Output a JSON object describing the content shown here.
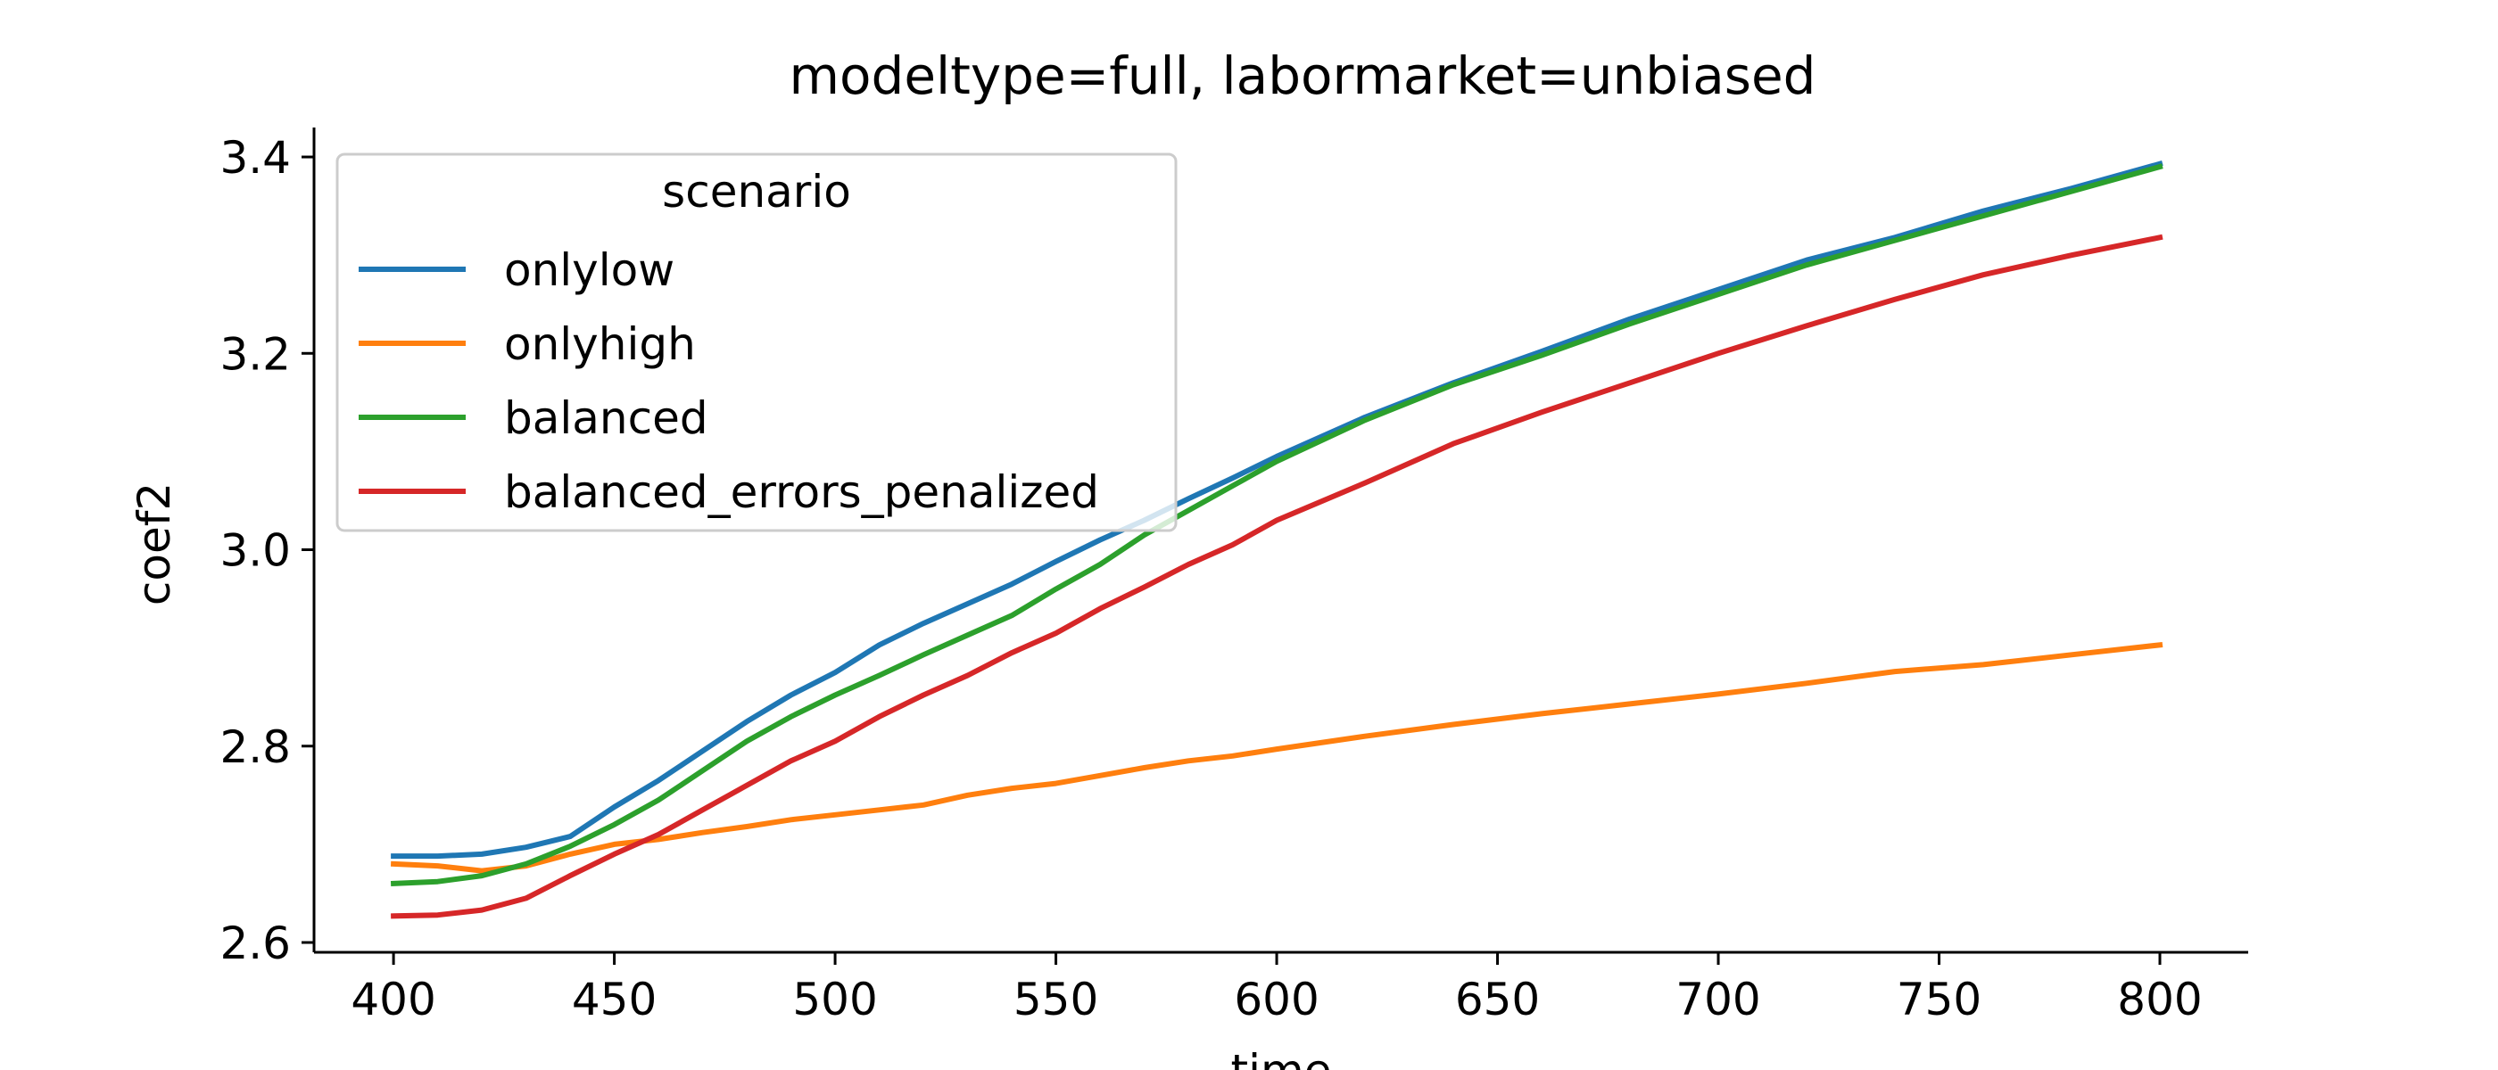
{
  "chart_data": {
    "type": "line",
    "title": "modeltype=full, labormarket=unbiased",
    "xlabel": "time",
    "ylabel": "coef2",
    "xlim": [
      382,
      820
    ],
    "ylim": [
      2.59,
      3.43
    ],
    "xticks": [
      400,
      450,
      500,
      550,
      600,
      650,
      700,
      750,
      800
    ],
    "yticks": [
      2.6,
      2.8,
      3.0,
      3.2,
      3.4
    ],
    "xtick_labels": [
      "400",
      "450",
      "500",
      "550",
      "600",
      "650",
      "700",
      "750",
      "800"
    ],
    "ytick_labels": [
      "2.6",
      "2.8",
      "3.0",
      "3.2",
      "3.4"
    ],
    "grid": false,
    "legend": {
      "title": "scenario",
      "placement": "upper-left"
    },
    "x": [
      400,
      410,
      420,
      430,
      440,
      450,
      460,
      470,
      480,
      490,
      500,
      510,
      520,
      530,
      540,
      550,
      560,
      570,
      580,
      590,
      600,
      620,
      640,
      660,
      680,
      700,
      720,
      740,
      760,
      780,
      800
    ],
    "series": [
      {
        "name": "onlylow",
        "color": "#1f77b4",
        "values": [
          2.688,
          2.688,
          2.69,
          2.697,
          2.708,
          2.738,
          2.765,
          2.795,
          2.825,
          2.852,
          2.875,
          2.903,
          2.925,
          2.945,
          2.965,
          2.988,
          3.01,
          3.03,
          3.052,
          3.073,
          3.095,
          3.135,
          3.17,
          3.202,
          3.235,
          3.265,
          3.295,
          3.318,
          3.345,
          3.368,
          3.393
        ]
      },
      {
        "name": "onlyhigh",
        "color": "#ff7f0e",
        "values": [
          2.68,
          2.678,
          2.673,
          2.678,
          2.69,
          2.7,
          2.705,
          2.712,
          2.718,
          2.725,
          2.73,
          2.735,
          2.74,
          2.75,
          2.757,
          2.762,
          2.77,
          2.778,
          2.785,
          2.79,
          2.797,
          2.81,
          2.822,
          2.833,
          2.843,
          2.853,
          2.864,
          2.876,
          2.883,
          2.893,
          2.903
        ]
      },
      {
        "name": "balanced",
        "color": "#2ca02c",
        "values": [
          2.66,
          2.662,
          2.668,
          2.68,
          2.698,
          2.72,
          2.745,
          2.775,
          2.805,
          2.83,
          2.852,
          2.872,
          2.893,
          2.913,
          2.933,
          2.96,
          2.985,
          3.015,
          3.04,
          3.065,
          3.09,
          3.132,
          3.168,
          3.198,
          3.23,
          3.26,
          3.29,
          3.315,
          3.34,
          3.365,
          3.39
        ]
      },
      {
        "name": "balanced_errors_penalized",
        "color": "#d62728",
        "values": [
          2.627,
          2.628,
          2.633,
          2.645,
          2.668,
          2.69,
          2.71,
          2.735,
          2.76,
          2.785,
          2.805,
          2.83,
          2.852,
          2.872,
          2.895,
          2.915,
          2.94,
          2.962,
          2.985,
          3.005,
          3.03,
          3.068,
          3.108,
          3.14,
          3.17,
          3.2,
          3.228,
          3.255,
          3.28,
          3.3,
          3.318
        ]
      }
    ]
  }
}
